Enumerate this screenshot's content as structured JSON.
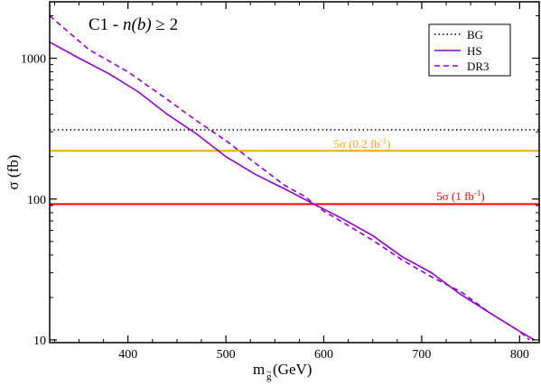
{
  "chart_data": {
    "type": "line",
    "title": "C1 - n(b) ≥ 2",
    "title_parts": [
      "C1 - ",
      "n(b)",
      " ≥ 2"
    ],
    "xlabel": "m",
    "xlabel_sub": "g",
    "xlabel_accent": "~",
    "xlabel_unit": " (GeV)",
    "ylabel": "σ (fb)",
    "xlim": [
      320,
      820
    ],
    "ylim": [
      10,
      2000
    ],
    "yscale": "log",
    "x_ticks": [
      400,
      500,
      600,
      700,
      800
    ],
    "y_ticks": [
      10,
      100,
      1000
    ],
    "grid": false,
    "legend_position": "top-right",
    "series": [
      {
        "name": "BG",
        "style": "dotted",
        "color": "#000000",
        "x": [
          320,
          820
        ],
        "y": [
          310,
          310
        ]
      },
      {
        "name": "HS",
        "style": "solid",
        "color": "#9400D3",
        "x": [
          320,
          350,
          380,
          410,
          440,
          470,
          500,
          530,
          560,
          590,
          620,
          650,
          680,
          710,
          740,
          770,
          800,
          815
        ],
        "y": [
          1300,
          1000,
          780,
          580,
          400,
          290,
          200,
          150,
          118,
          92,
          72,
          55,
          39,
          30,
          21,
          15.5,
          11.5,
          10
        ]
      },
      {
        "name": "DR3",
        "style": "dashed",
        "color": "#9400D3",
        "x": [
          320,
          360,
          380,
          400,
          440,
          470,
          500,
          530,
          560,
          580,
          600,
          620,
          650,
          680,
          710,
          740,
          770,
          800,
          810
        ],
        "y": [
          2000,
          1150,
          960,
          800,
          510,
          360,
          260,
          180,
          125,
          105,
          82,
          68,
          51,
          37,
          28,
          22,
          15.5,
          11.5,
          10
        ]
      }
    ],
    "reference_lines": [
      {
        "label_prefix": "5σ (",
        "label_value": "0.2 fb",
        "label_sup": "-1",
        "label_suffix": ")",
        "y": 220,
        "color": "#FFA500"
      },
      {
        "label_prefix": "5σ (",
        "label_value": "1 fb",
        "label_sup": "-1",
        "label_suffix": ")",
        "y": 92,
        "color": "#FF0000"
      }
    ]
  }
}
